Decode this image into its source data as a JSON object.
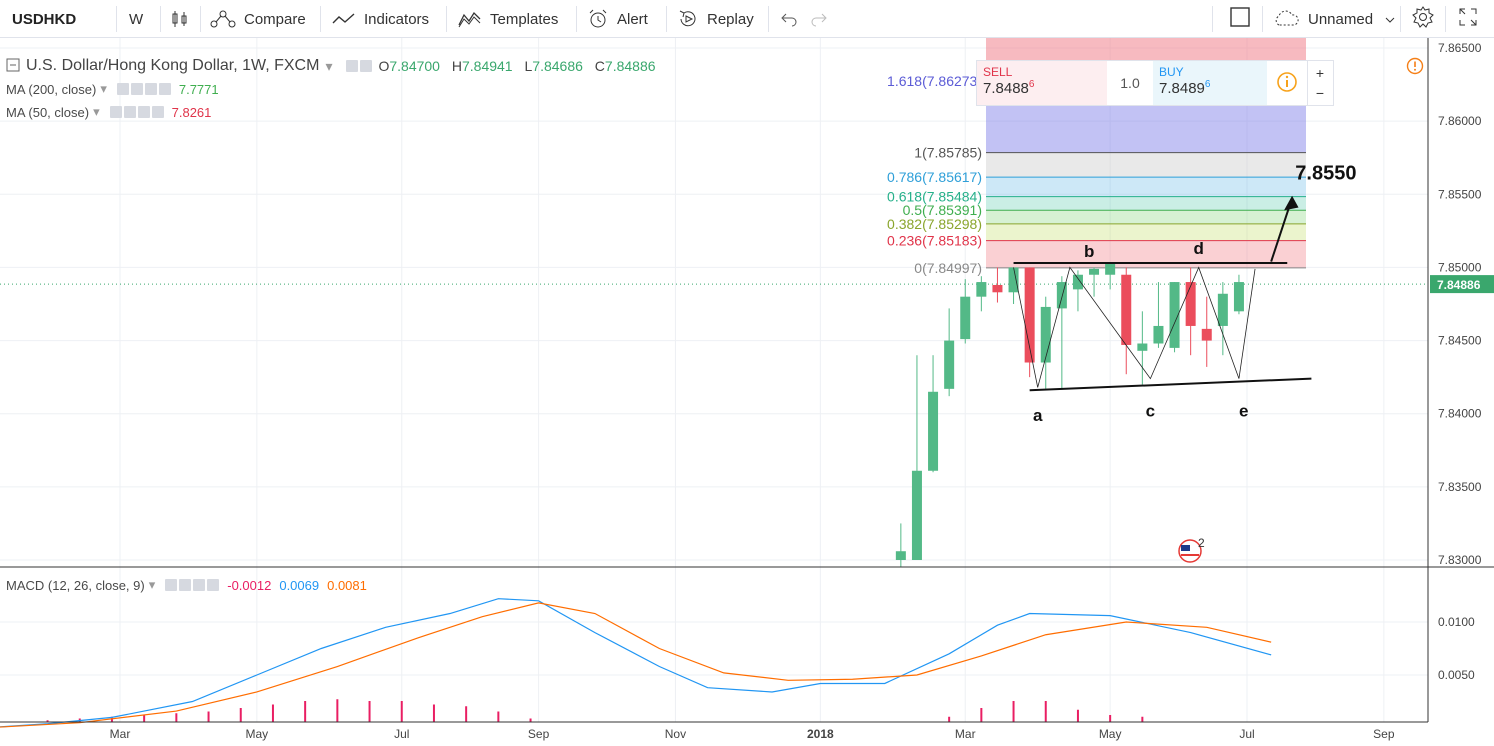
{
  "toolbar": {
    "symbol": "USDHKD",
    "interval": "W",
    "compare": "Compare",
    "indicators": "Indicators",
    "templates": "Templates",
    "alert": "Alert",
    "replay": "Replay",
    "layout_name": "Unnamed"
  },
  "legend": {
    "title": "U.S. Dollar/Hong Kong Dollar, 1W, FXCM",
    "o_label": "O",
    "o": "7.84700",
    "h_label": "H",
    "h": "7.84941",
    "l_label": "L",
    "l": "7.84686",
    "c_label": "C",
    "c": "7.84886",
    "ma200_label": "MA (200, close)",
    "ma200_value": "7.7771",
    "ma50_label": "MA (50, close)",
    "ma50_value": "7.8261",
    "macd_label": "MACD (12, 26, close, 9)",
    "macd_hist": "-0.0012",
    "macd_line": "0.0069",
    "macd_signal": "0.0081"
  },
  "trade": {
    "sell_label": "SELL",
    "sell_price": "7.8488",
    "sell_sup": "6",
    "spread": "1.0",
    "buy_label": "BUY",
    "buy_price": "7.8489",
    "buy_sup": "6",
    "plus": "+",
    "minus": "−"
  },
  "fib": {
    "levels": [
      {
        "label": "1.618(7.86273)",
        "price": 7.86273,
        "color": "#5b5bd6"
      },
      {
        "label": "1(7.85785)",
        "price": 7.85785,
        "color": "#555555"
      },
      {
        "label": "0.786(7.85617)",
        "price": 7.85617,
        "color": "#2e9fd8"
      },
      {
        "label": "0.618(7.85484)",
        "price": 7.85484,
        "color": "#26b08a"
      },
      {
        "label": "0.5(7.85391)",
        "price": 7.85391,
        "color": "#3fae4f"
      },
      {
        "label": "0.382(7.85298)",
        "price": 7.85298,
        "color": "#8aa52c"
      },
      {
        "label": "0.236(7.85183)",
        "price": 7.85183,
        "color": "#e0344a"
      },
      {
        "label": "0(7.84997)",
        "price": 7.84997,
        "color": "#888888"
      }
    ]
  },
  "annotations": {
    "target": "7.8550",
    "wave_labels": [
      "a",
      "b",
      "c",
      "d",
      "e"
    ],
    "event_badge": "2"
  },
  "price_axis": {
    "ticks": [
      "7.86500",
      "7.86000",
      "7.85500",
      "7.85000",
      "7.84500",
      "7.84000",
      "7.83500",
      "7.83000"
    ],
    "tick_values": [
      7.865,
      7.86,
      7.855,
      7.85,
      7.845,
      7.84,
      7.835,
      7.83
    ],
    "last_price": "7.84886",
    "last_price_value": 7.84886
  },
  "macd_axis": {
    "ticks": [
      "0.0100",
      "0.0050"
    ],
    "tick_values": [
      0.01,
      0.005
    ]
  },
  "time_axis": {
    "labels": [
      "Mar",
      "May",
      "Jul",
      "Sep",
      "Nov",
      "2018",
      "Mar",
      "May",
      "Jul",
      "Sep"
    ],
    "weeks": [
      8.5,
      17,
      26,
      34.5,
      43,
      52,
      61,
      70,
      78.5,
      87
    ]
  },
  "colors": {
    "up": "#53b987",
    "down": "#eb4d5c",
    "macd_line": "#2196f3",
    "signal_line": "#ff6d00",
    "histogram": "#e91e63",
    "ma200": "#3fae4f",
    "ma50": "#e0344a"
  },
  "chart_data": {
    "type": "candlestick",
    "x_unit": "week index (0 = first week of 2017)",
    "candles": [
      {
        "w": 57,
        "o": 7.83,
        "h": 7.8325,
        "l": 7.8295,
        "c": 7.8306
      },
      {
        "w": 58,
        "o": 7.83,
        "h": 7.844,
        "l": 7.83,
        "c": 7.8361
      },
      {
        "w": 59,
        "o": 7.8361,
        "h": 7.844,
        "l": 7.836,
        "c": 7.8415
      },
      {
        "w": 60,
        "o": 7.8417,
        "h": 7.8472,
        "l": 7.8412,
        "c": 7.845
      },
      {
        "w": 61,
        "o": 7.8451,
        "h": 7.8492,
        "l": 7.8448,
        "c": 7.848
      },
      {
        "w": 62,
        "o": 7.848,
        "h": 7.8494,
        "l": 7.847,
        "c": 7.849
      },
      {
        "w": 63,
        "o": 7.8488,
        "h": 7.85,
        "l": 7.8476,
        "c": 7.8483
      },
      {
        "w": 64,
        "o": 7.8483,
        "h": 7.85,
        "l": 7.8475,
        "c": 7.85
      },
      {
        "w": 65,
        "o": 7.85,
        "h": 7.85,
        "l": 7.8425,
        "c": 7.8435
      },
      {
        "w": 66,
        "o": 7.8435,
        "h": 7.848,
        "l": 7.8417,
        "c": 7.8473
      },
      {
        "w": 67,
        "o": 7.8472,
        "h": 7.8494,
        "l": 7.8417,
        "c": 7.849
      },
      {
        "w": 68,
        "o": 7.8485,
        "h": 7.8498,
        "l": 7.847,
        "c": 7.8495
      },
      {
        "w": 69,
        "o": 7.8495,
        "h": 7.85,
        "l": 7.848,
        "c": 7.8499
      },
      {
        "w": 70,
        "o": 7.8495,
        "h": 7.8503,
        "l": 7.8485,
        "c": 7.8503
      },
      {
        "w": 71,
        "o": 7.8495,
        "h": 7.85,
        "l": 7.8427,
        "c": 7.8447
      },
      {
        "w": 72,
        "o": 7.8443,
        "h": 7.847,
        "l": 7.842,
        "c": 7.8448
      },
      {
        "w": 73,
        "o": 7.8448,
        "h": 7.849,
        "l": 7.8445,
        "c": 7.846
      },
      {
        "w": 74,
        "o": 7.8445,
        "h": 7.849,
        "l": 7.8442,
        "c": 7.849
      },
      {
        "w": 75,
        "o": 7.849,
        "h": 7.85,
        "l": 7.844,
        "c": 7.846
      },
      {
        "w": 76,
        "o": 7.8458,
        "h": 7.848,
        "l": 7.8432,
        "c": 7.845
      },
      {
        "w": 77,
        "o": 7.846,
        "h": 7.849,
        "l": 7.844,
        "c": 7.8482
      },
      {
        "w": 78,
        "o": 7.847,
        "h": 7.8495,
        "l": 7.8468,
        "c": 7.849
      }
    ],
    "ma50": [],
    "macd": [
      {
        "w": 0,
        "v": 0.0
      },
      {
        "w": 4,
        "v": 0.0004
      },
      {
        "w": 8,
        "v": 0.001
      },
      {
        "w": 13,
        "v": 0.0025
      },
      {
        "w": 17,
        "v": 0.005
      },
      {
        "w": 21,
        "v": 0.0075
      },
      {
        "w": 25,
        "v": 0.0095
      },
      {
        "w": 29,
        "v": 0.0108
      },
      {
        "w": 32,
        "v": 0.0122
      },
      {
        "w": 34.5,
        "v": 0.012
      },
      {
        "w": 38,
        "v": 0.009
      },
      {
        "w": 42,
        "v": 0.0058
      },
      {
        "w": 45,
        "v": 0.0038
      },
      {
        "w": 49,
        "v": 0.0034
      },
      {
        "w": 52,
        "v": 0.0042
      },
      {
        "w": 56,
        "v": 0.0042
      },
      {
        "w": 60,
        "v": 0.007
      },
      {
        "w": 63,
        "v": 0.0097
      },
      {
        "w": 65,
        "v": 0.0108
      },
      {
        "w": 70,
        "v": 0.0106
      },
      {
        "w": 75,
        "v": 0.009
      },
      {
        "w": 80,
        "v": 0.0069
      }
    ],
    "signal": [
      {
        "w": 0,
        "v": 0.0
      },
      {
        "w": 6,
        "v": 0.0005
      },
      {
        "w": 12,
        "v": 0.0016
      },
      {
        "w": 17,
        "v": 0.0034
      },
      {
        "w": 22,
        "v": 0.0058
      },
      {
        "w": 27,
        "v": 0.0085
      },
      {
        "w": 31,
        "v": 0.0105
      },
      {
        "w": 34.5,
        "v": 0.0118
      },
      {
        "w": 38,
        "v": 0.0108
      },
      {
        "w": 42,
        "v": 0.0075
      },
      {
        "w": 46,
        "v": 0.0052
      },
      {
        "w": 50,
        "v": 0.0045
      },
      {
        "w": 54,
        "v": 0.0046
      },
      {
        "w": 58,
        "v": 0.005
      },
      {
        "w": 62,
        "v": 0.0068
      },
      {
        "w": 66,
        "v": 0.0088
      },
      {
        "w": 71,
        "v": 0.01
      },
      {
        "w": 76,
        "v": 0.0095
      },
      {
        "w": 80,
        "v": 0.0081
      }
    ],
    "hist": [
      {
        "w": 4,
        "v": 0.0002
      },
      {
        "w": 6,
        "v": 0.0004
      },
      {
        "w": 8,
        "v": 0.0006
      },
      {
        "w": 10,
        "v": 0.0008
      },
      {
        "w": 12,
        "v": 0.001
      },
      {
        "w": 14,
        "v": 0.0012
      },
      {
        "w": 16,
        "v": 0.0016
      },
      {
        "w": 18,
        "v": 0.002
      },
      {
        "w": 20,
        "v": 0.0024
      },
      {
        "w": 22,
        "v": 0.0026
      },
      {
        "w": 24,
        "v": 0.0024
      },
      {
        "w": 26,
        "v": 0.0024
      },
      {
        "w": 28,
        "v": 0.002
      },
      {
        "w": 30,
        "v": 0.0018
      },
      {
        "w": 32,
        "v": 0.0012
      },
      {
        "w": 34,
        "v": 0.0004
      },
      {
        "w": 60,
        "v": 0.0006
      },
      {
        "w": 62,
        "v": 0.0016
      },
      {
        "w": 64,
        "v": 0.0024
      },
      {
        "w": 66,
        "v": 0.0024
      },
      {
        "w": 68,
        "v": 0.0014
      },
      {
        "w": 70,
        "v": 0.0008
      },
      {
        "w": 72,
        "v": 0.0006
      }
    ]
  }
}
